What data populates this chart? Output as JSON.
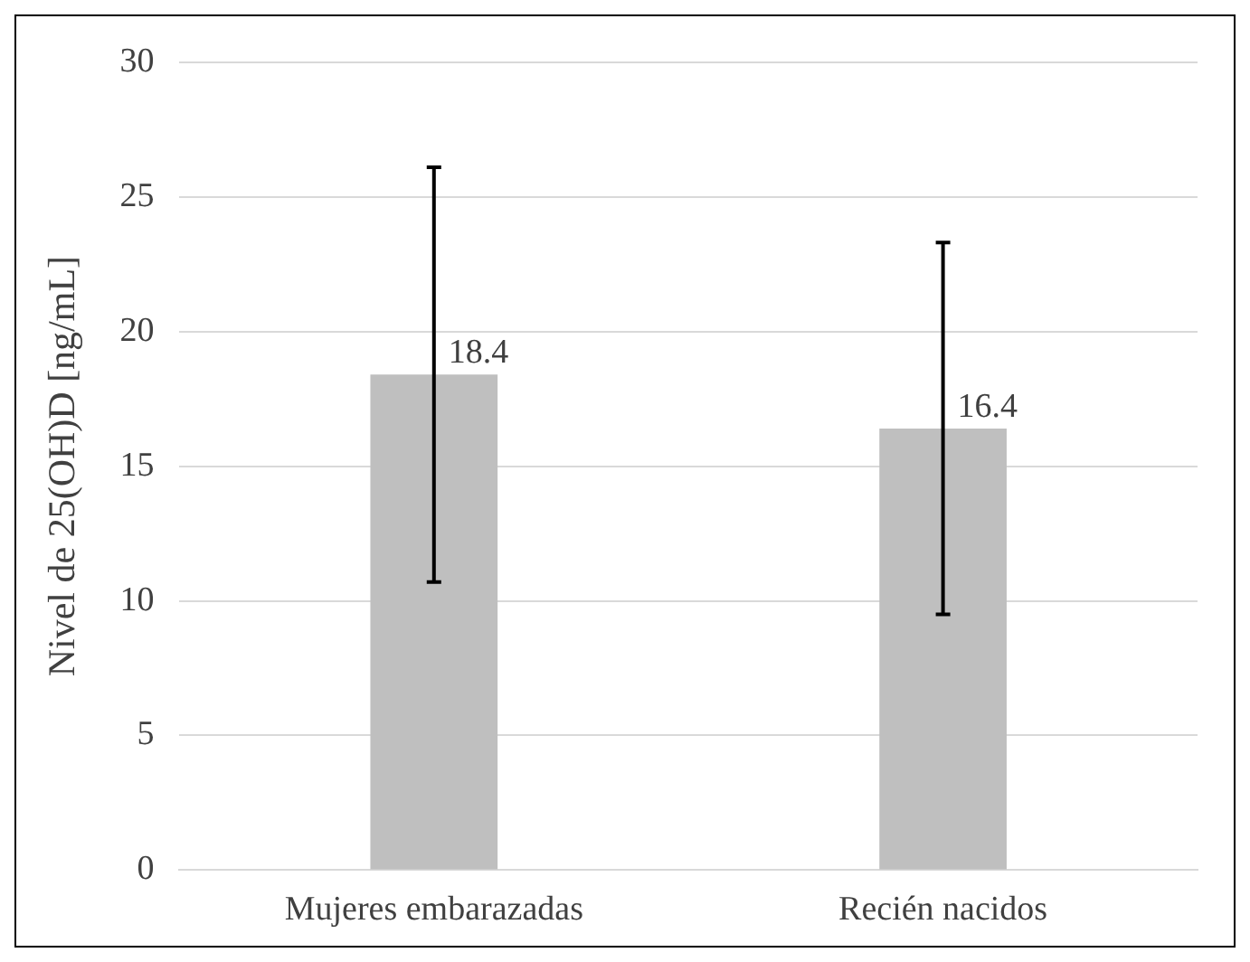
{
  "chart_data": {
    "type": "bar",
    "ylabel": "Nivel de 25(OH)D [ng/mL]",
    "categories": [
      "Mujeres embarazadas",
      "Recién nacidos"
    ],
    "values": [
      18.4,
      16.4
    ],
    "errors": [
      7.7,
      6.9
    ],
    "color": "#bfbfbf",
    "ylim": [
      0,
      30
    ],
    "yticks": [
      0,
      5,
      10,
      15,
      20,
      25,
      30
    ],
    "grid": "y",
    "data_labels": true,
    "legend": false
  }
}
